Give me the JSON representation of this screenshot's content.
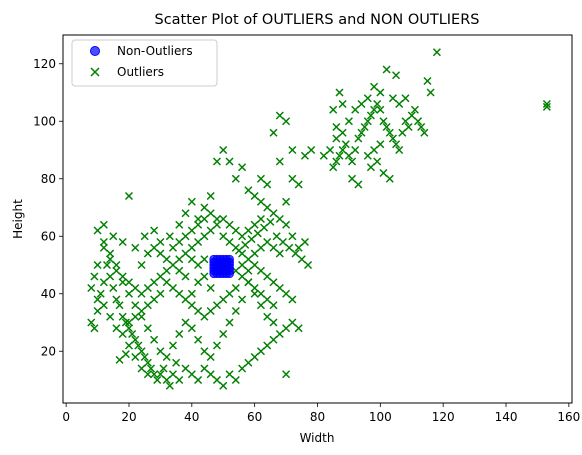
{
  "chart_data": {
    "type": "scatter",
    "title": "Scatter Plot of OUTLIERS and NON OUTLIERS",
    "xlabel": "Width",
    "ylabel": "Height",
    "xlim": [
      -1,
      161
    ],
    "ylim": [
      2,
      130
    ],
    "xticks": [
      0,
      20,
      40,
      60,
      80,
      100,
      120,
      140,
      160
    ],
    "yticks": [
      20,
      40,
      60,
      80,
      100,
      120
    ],
    "grid": false,
    "legend_position": "top-left",
    "series": [
      {
        "name": "Non-Outliers",
        "marker": "circle",
        "color": "#0000ff",
        "points": [
          [
            47,
            47
          ],
          [
            48,
            48
          ],
          [
            49,
            49
          ],
          [
            50,
            50
          ],
          [
            51,
            51
          ],
          [
            52,
            52
          ],
          [
            47,
            52
          ],
          [
            52,
            47
          ],
          [
            48,
            51
          ],
          [
            51,
            48
          ],
          [
            49,
            50
          ],
          [
            50,
            49
          ],
          [
            47,
            49
          ],
          [
            52,
            50
          ],
          [
            48,
            47
          ],
          [
            51,
            52
          ],
          [
            49,
            52
          ],
          [
            50,
            47
          ],
          [
            47,
            51
          ],
          [
            52,
            48
          ],
          [
            48,
            49
          ],
          [
            51,
            50
          ],
          [
            49,
            48
          ],
          [
            50,
            51
          ],
          [
            48,
            52
          ],
          [
            51,
            47
          ],
          [
            47,
            48
          ],
          [
            52,
            51
          ],
          [
            49,
            47
          ],
          [
            50,
            52
          ],
          [
            48,
            50
          ],
          [
            51,
            49
          ],
          [
            47,
            50
          ],
          [
            52,
            49
          ],
          [
            49,
            51
          ],
          [
            50,
            48
          ],
          [
            48,
            48.5
          ],
          [
            51,
            50.5
          ],
          [
            49.5,
            49.5
          ],
          [
            50.5,
            50.5
          ]
        ]
      },
      {
        "name": "Outliers",
        "marker": "x",
        "color": "#008000",
        "points": [
          [
            20,
            74
          ],
          [
            10,
            62
          ],
          [
            12,
            64
          ],
          [
            15,
            60
          ],
          [
            18,
            58
          ],
          [
            22,
            56
          ],
          [
            25,
            60
          ],
          [
            28,
            62
          ],
          [
            30,
            58
          ],
          [
            33,
            60
          ],
          [
            36,
            64
          ],
          [
            38,
            68
          ],
          [
            40,
            72
          ],
          [
            42,
            66
          ],
          [
            44,
            70
          ],
          [
            46,
            74
          ],
          [
            48,
            86
          ],
          [
            50,
            90
          ],
          [
            52,
            86
          ],
          [
            54,
            80
          ],
          [
            56,
            84
          ],
          [
            58,
            76
          ],
          [
            60,
            74
          ],
          [
            62,
            72
          ],
          [
            64,
            70
          ],
          [
            66,
            68
          ],
          [
            68,
            66
          ],
          [
            70,
            64
          ],
          [
            72,
            60
          ],
          [
            74,
            56
          ],
          [
            76,
            58
          ],
          [
            70,
            72
          ],
          [
            72,
            80
          ],
          [
            74,
            78
          ],
          [
            66,
            96
          ],
          [
            68,
            102
          ],
          [
            70,
            100
          ],
          [
            72,
            90
          ],
          [
            76,
            88
          ],
          [
            78,
            90
          ],
          [
            68,
            86
          ],
          [
            62,
            80
          ],
          [
            64,
            78
          ],
          [
            8,
            30
          ],
          [
            9,
            28
          ],
          [
            10,
            34
          ],
          [
            11,
            40
          ],
          [
            12,
            44
          ],
          [
            13,
            50
          ],
          [
            14,
            46
          ],
          [
            15,
            42
          ],
          [
            16,
            38
          ],
          [
            17,
            36
          ],
          [
            18,
            32
          ],
          [
            19,
            30
          ],
          [
            20,
            28
          ],
          [
            21,
            26
          ],
          [
            22,
            24
          ],
          [
            23,
            22
          ],
          [
            24,
            20
          ],
          [
            25,
            18
          ],
          [
            26,
            16
          ],
          [
            27,
            14
          ],
          [
            28,
            12
          ],
          [
            29,
            10
          ],
          [
            30,
            12
          ],
          [
            31,
            14
          ],
          [
            32,
            10
          ],
          [
            33,
            8
          ],
          [
            34,
            12
          ],
          [
            35,
            16
          ],
          [
            36,
            10
          ],
          [
            38,
            14
          ],
          [
            40,
            12
          ],
          [
            42,
            10
          ],
          [
            44,
            14
          ],
          [
            46,
            12
          ],
          [
            48,
            10
          ],
          [
            50,
            8
          ],
          [
            52,
            12
          ],
          [
            54,
            10
          ],
          [
            56,
            14
          ],
          [
            58,
            16
          ],
          [
            60,
            18
          ],
          [
            62,
            20
          ],
          [
            64,
            22
          ],
          [
            66,
            24
          ],
          [
            68,
            26
          ],
          [
            70,
            28
          ],
          [
            72,
            30
          ],
          [
            74,
            28
          ],
          [
            70,
            12
          ],
          [
            66,
            30
          ],
          [
            64,
            32
          ],
          [
            62,
            36
          ],
          [
            60,
            40
          ],
          [
            58,
            44
          ],
          [
            56,
            38
          ],
          [
            54,
            34
          ],
          [
            52,
            30
          ],
          [
            50,
            26
          ],
          [
            48,
            22
          ],
          [
            46,
            18
          ],
          [
            44,
            20
          ],
          [
            42,
            24
          ],
          [
            40,
            28
          ],
          [
            38,
            30
          ],
          [
            36,
            26
          ],
          [
            34,
            22
          ],
          [
            32,
            18
          ],
          [
            30,
            20
          ],
          [
            28,
            24
          ],
          [
            26,
            28
          ],
          [
            24,
            32
          ],
          [
            22,
            36
          ],
          [
            20,
            40
          ],
          [
            18,
            44
          ],
          [
            16,
            48
          ],
          [
            14,
            52
          ],
          [
            12,
            56
          ],
          [
            10,
            50
          ],
          [
            9,
            46
          ],
          [
            8,
            42
          ],
          [
            10,
            38
          ],
          [
            12,
            36
          ],
          [
            14,
            32
          ],
          [
            16,
            28
          ],
          [
            18,
            26
          ],
          [
            20,
            22
          ],
          [
            22,
            18
          ],
          [
            24,
            14
          ],
          [
            26,
            12
          ],
          [
            17,
            17
          ],
          [
            19,
            19
          ],
          [
            55,
            55
          ],
          [
            57,
            57
          ],
          [
            59,
            59
          ],
          [
            61,
            61
          ],
          [
            63,
            63
          ],
          [
            65,
            65
          ],
          [
            67,
            60
          ],
          [
            69,
            58
          ],
          [
            71,
            56
          ],
          [
            73,
            54
          ],
          [
            75,
            52
          ],
          [
            77,
            50
          ],
          [
            60,
            50
          ],
          [
            62,
            48
          ],
          [
            64,
            46
          ],
          [
            66,
            44
          ],
          [
            68,
            42
          ],
          [
            70,
            40
          ],
          [
            72,
            38
          ],
          [
            56,
            60
          ],
          [
            58,
            62
          ],
          [
            60,
            64
          ],
          [
            62,
            66
          ],
          [
            54,
            62
          ],
          [
            52,
            64
          ],
          [
            50,
            66
          ],
          [
            48,
            64
          ],
          [
            46,
            62
          ],
          [
            44,
            60
          ],
          [
            42,
            58
          ],
          [
            40,
            56
          ],
          [
            38,
            54
          ],
          [
            36,
            52
          ],
          [
            34,
            50
          ],
          [
            32,
            48
          ],
          [
            30,
            46
          ],
          [
            28,
            44
          ],
          [
            26,
            42
          ],
          [
            24,
            40
          ],
          [
            22,
            42
          ],
          [
            20,
            44
          ],
          [
            18,
            46
          ],
          [
            16,
            50
          ],
          [
            14,
            54
          ],
          [
            12,
            58
          ],
          [
            24,
            50
          ],
          [
            26,
            54
          ],
          [
            28,
            56
          ],
          [
            30,
            54
          ],
          [
            32,
            52
          ],
          [
            34,
            56
          ],
          [
            36,
            58
          ],
          [
            38,
            60
          ],
          [
            40,
            62
          ],
          [
            42,
            64
          ],
          [
            44,
            66
          ],
          [
            46,
            68
          ],
          [
            48,
            66
          ],
          [
            50,
            60
          ],
          [
            52,
            58
          ],
          [
            54,
            56
          ],
          [
            56,
            54
          ],
          [
            58,
            52
          ],
          [
            60,
            54
          ],
          [
            62,
            56
          ],
          [
            64,
            58
          ],
          [
            66,
            56
          ],
          [
            68,
            54
          ],
          [
            56,
            46
          ],
          [
            58,
            44
          ],
          [
            60,
            42
          ],
          [
            62,
            40
          ],
          [
            64,
            38
          ],
          [
            66,
            36
          ],
          [
            54,
            42
          ],
          [
            52,
            40
          ],
          [
            50,
            38
          ],
          [
            48,
            36
          ],
          [
            46,
            34
          ],
          [
            44,
            32
          ],
          [
            42,
            34
          ],
          [
            40,
            36
          ],
          [
            38,
            38
          ],
          [
            36,
            40
          ],
          [
            34,
            42
          ],
          [
            32,
            44
          ],
          [
            30,
            40
          ],
          [
            28,
            38
          ],
          [
            26,
            36
          ],
          [
            24,
            34
          ],
          [
            22,
            32
          ],
          [
            20,
            30
          ],
          [
            42,
            44
          ],
          [
            44,
            46
          ],
          [
            46,
            42
          ],
          [
            40,
            40
          ],
          [
            38,
            46
          ],
          [
            36,
            48
          ],
          [
            54,
            48
          ],
          [
            56,
            50
          ],
          [
            58,
            48
          ],
          [
            42,
            50
          ],
          [
            44,
            52
          ],
          [
            40,
            52
          ],
          [
            85,
            84
          ],
          [
            86,
            86
          ],
          [
            87,
            88
          ],
          [
            88,
            90
          ],
          [
            89,
            92
          ],
          [
            90,
            88
          ],
          [
            91,
            86
          ],
          [
            92,
            90
          ],
          [
            93,
            94
          ],
          [
            94,
            96
          ],
          [
            95,
            98
          ],
          [
            96,
            100
          ],
          [
            97,
            102
          ],
          [
            98,
            104
          ],
          [
            99,
            106
          ],
          [
            100,
            104
          ],
          [
            101,
            100
          ],
          [
            102,
            98
          ],
          [
            103,
            96
          ],
          [
            104,
            94
          ],
          [
            105,
            92
          ],
          [
            106,
            90
          ],
          [
            107,
            96
          ],
          [
            108,
            100
          ],
          [
            109,
            98
          ],
          [
            110,
            102
          ],
          [
            111,
            104
          ],
          [
            112,
            100
          ],
          [
            113,
            98
          ],
          [
            114,
            96
          ],
          [
            115,
            114
          ],
          [
            116,
            110
          ],
          [
            118,
            124
          ],
          [
            102,
            118
          ],
          [
            105,
            116
          ],
          [
            108,
            108
          ],
          [
            100,
            110
          ],
          [
            98,
            112
          ],
          [
            96,
            108
          ],
          [
            94,
            106
          ],
          [
            92,
            104
          ],
          [
            90,
            100
          ],
          [
            88,
            96
          ],
          [
            86,
            94
          ],
          [
            84,
            90
          ],
          [
            82,
            88
          ],
          [
            97,
            84
          ],
          [
            99,
            86
          ],
          [
            101,
            82
          ],
          [
            103,
            80
          ],
          [
            93,
            78
          ],
          [
            91,
            80
          ],
          [
            96,
            88
          ],
          [
            98,
            90
          ],
          [
            100,
            92
          ],
          [
            85,
            104
          ],
          [
            87,
            110
          ],
          [
            88,
            106
          ],
          [
            86,
            98
          ],
          [
            104,
            108
          ],
          [
            106,
            106
          ],
          [
            153,
            105
          ],
          [
            153,
            106
          ]
        ]
      }
    ]
  }
}
